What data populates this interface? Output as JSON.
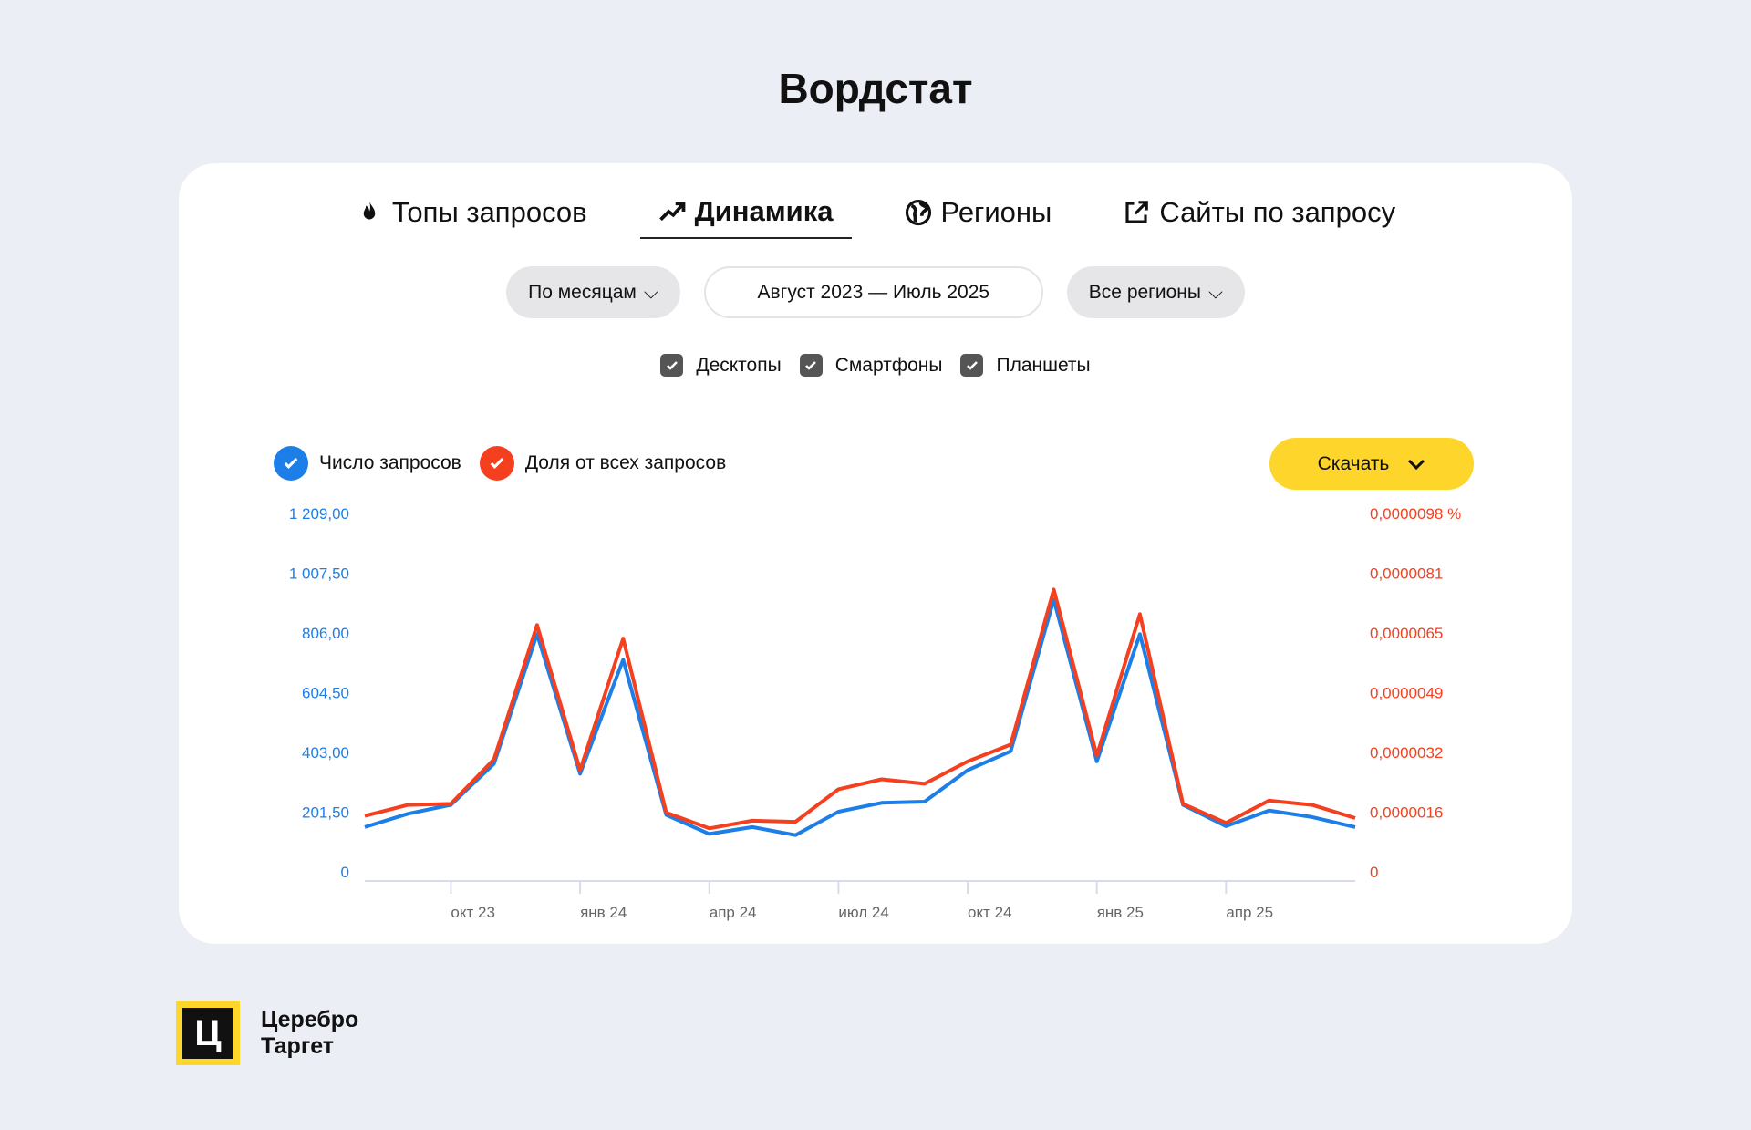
{
  "page_title": "Вордстат",
  "tabs": [
    {
      "label": "Топы запросов",
      "icon": "fire-icon"
    },
    {
      "label": "Динамика",
      "icon": "trend-icon",
      "active": true
    },
    {
      "label": "Регионы",
      "icon": "globe-icon"
    },
    {
      "label": "Сайты по запросу",
      "icon": "external-link-icon"
    }
  ],
  "filters": {
    "period": "По месяцам",
    "range": "Август 2023 — Июль 2025",
    "region": "Все регионы"
  },
  "devices": [
    "Десктопы",
    "Смартфоны",
    "Планшеты"
  ],
  "download_label": "Скачать",
  "brand": {
    "line1": "Церебро",
    "line2": "Таргет",
    "mark": "Ц"
  },
  "colors": {
    "blue": "#1e7ee8",
    "red": "#f5401f",
    "yellow": "#fdd52b"
  },
  "chart_data": {
    "type": "line",
    "x": [
      "авг 23",
      "сен 23",
      "окт 23",
      "ноя 23",
      "дек 23",
      "янв 24",
      "фев 24",
      "мар 24",
      "апр 24",
      "май 24",
      "июн 24",
      "июл 24",
      "авг 24",
      "сен 24",
      "окт 24",
      "ноя 24",
      "дек 24",
      "янв 25",
      "фев 25",
      "мар 25",
      "апр 25",
      "май 25",
      "июн 25",
      "июл 25"
    ],
    "x_tick_labels": [
      {
        "index": 2,
        "label": "окт 23"
      },
      {
        "index": 5,
        "label": "янв 24"
      },
      {
        "index": 8,
        "label": "апр 24"
      },
      {
        "index": 11,
        "label": "июл 24"
      },
      {
        "index": 14,
        "label": "окт 24"
      },
      {
        "index": 17,
        "label": "янв 25"
      },
      {
        "index": 20,
        "label": "апр 25"
      }
    ],
    "series": [
      {
        "name": "Число запросов",
        "axis": "left",
        "color": "#1e7ee8",
        "values": [
          151,
          196,
          226,
          365,
          802,
          331,
          716,
          192,
          128,
          151,
          124,
          203,
          233,
          237,
          343,
          407,
          919,
          373,
          802,
          226,
          154,
          207,
          185,
          151
        ]
      },
      {
        "name": "Доля от всех запросов",
        "axis": "right",
        "color": "#f5401f",
        "values": [
          1.53e-06,
          1.83e-06,
          1.86e-06,
          3.08e-06,
          6.75e-06,
          2.78e-06,
          6.38e-06,
          1.62e-06,
          1.19e-06,
          1.4e-06,
          1.37e-06,
          2.26e-06,
          2.53e-06,
          2.41e-06,
          3.02e-06,
          3.48e-06,
          7.72e-06,
          3.18e-06,
          7.05e-06,
          1.86e-06,
          1.34e-06,
          1.95e-06,
          1.83e-06,
          1.47e-06
        ]
      }
    ],
    "left_axis": {
      "range": [
        0,
        1209
      ],
      "tick_labels": [
        "0",
        "201,50",
        "403,00",
        "604,50",
        "806,00",
        "1 007,50",
        "1 209,00"
      ]
    },
    "right_axis": {
      "range": [
        0,
        9.8e-06
      ],
      "tick_labels": [
        "0",
        "0,0000016",
        "0,0000032",
        "0,0000049",
        "0,0000065",
        "0,0000081",
        "0,0000098 %"
      ]
    },
    "legend": "top-left"
  }
}
